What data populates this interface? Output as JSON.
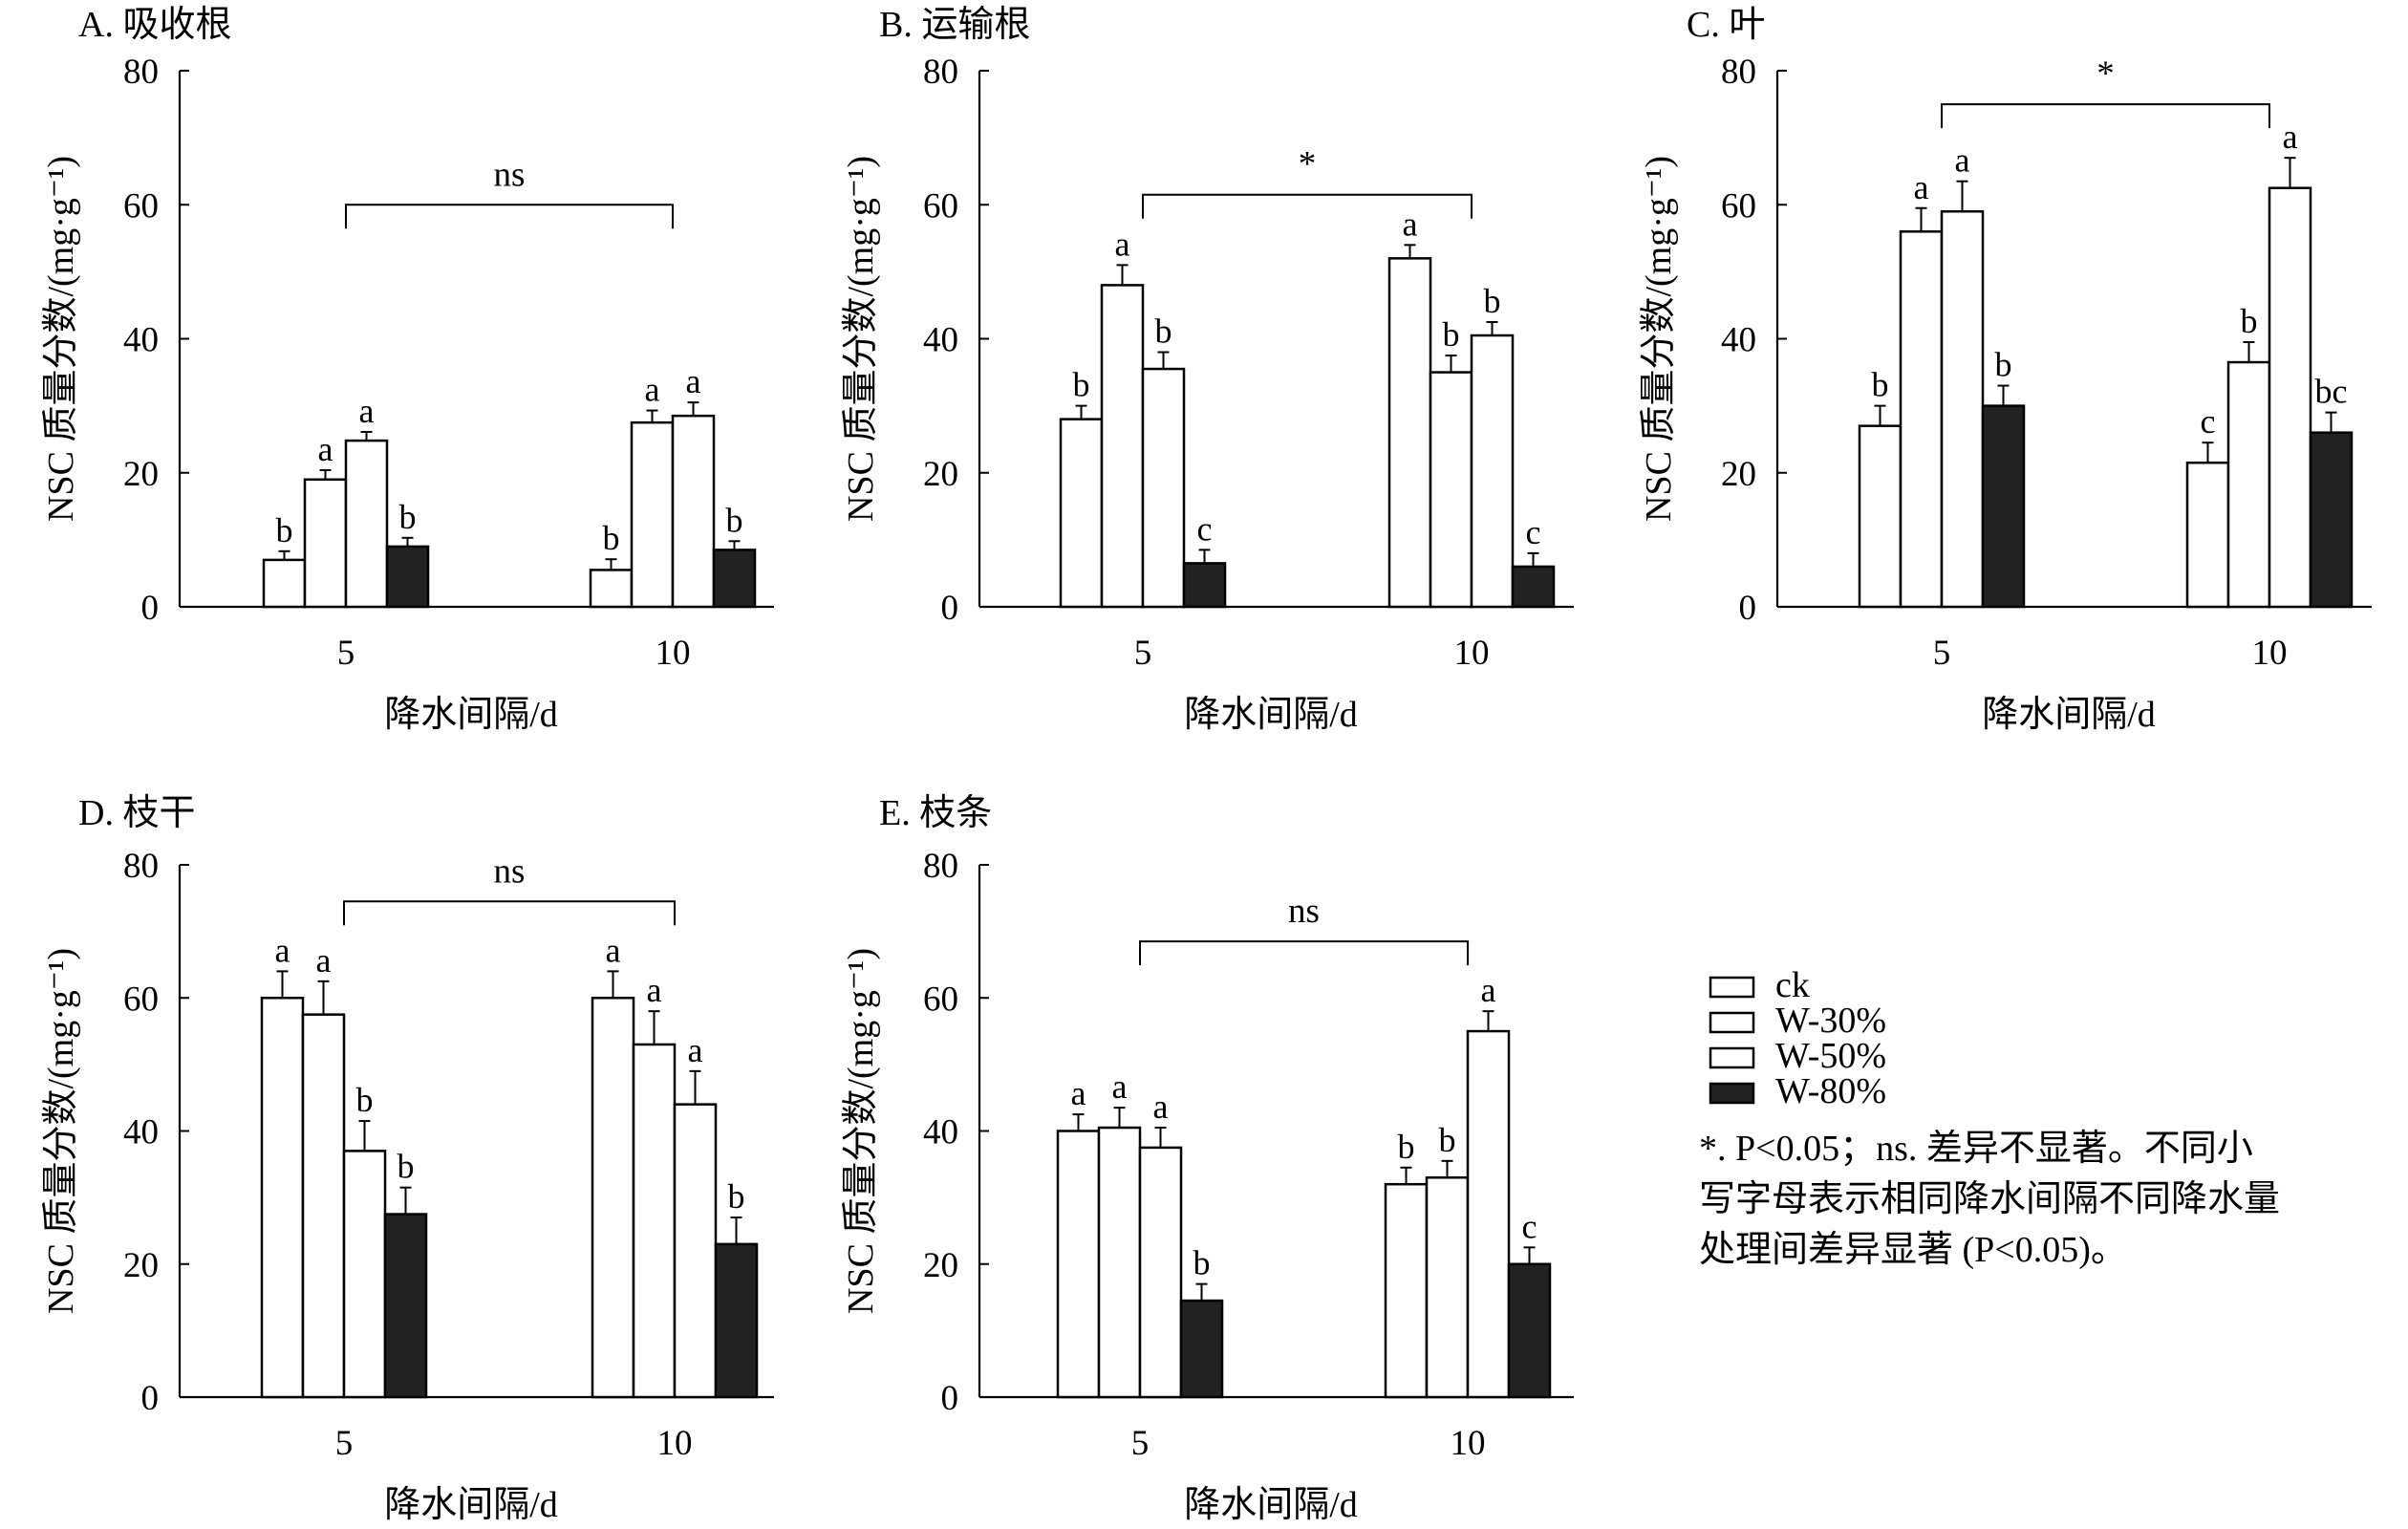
{
  "chart_data": [
    {
      "type": "bar",
      "title": "A. 吸收根",
      "xlabel": "降水间隔/d",
      "ylabel": "NSC 质量分数/(mg·g⁻¹)",
      "ylim": [
        0,
        80
      ],
      "yticks": [
        "0",
        "20",
        "40",
        "60",
        "80"
      ],
      "categories": [
        "5",
        "10"
      ],
      "series": [
        {
          "name": "ck",
          "values": [
            7,
            5.5
          ],
          "errors": [
            1.3,
            1.6
          ],
          "letters": [
            "b",
            "b"
          ]
        },
        {
          "name": "W-30%",
          "values": [
            19,
            27.5
          ],
          "errors": [
            1.4,
            1.8
          ],
          "letters": [
            "a",
            "a"
          ]
        },
        {
          "name": "W-50%",
          "values": [
            24.8,
            28.5
          ],
          "errors": [
            1.3,
            2.0
          ],
          "letters": [
            "a",
            "a"
          ]
        },
        {
          "name": "W-80%",
          "values": [
            9,
            8.5
          ],
          "errors": [
            1.3,
            1.3
          ],
          "letters": [
            "b",
            "b"
          ]
        }
      ],
      "significance": "ns",
      "sig_level": 60
    },
    {
      "type": "bar",
      "title": "B. 运输根",
      "xlabel": "降水间隔/d",
      "ylabel": "NSC 质量分数/(mg·g⁻¹)",
      "ylim": [
        0,
        80
      ],
      "yticks": [
        "0",
        "20",
        "40",
        "60",
        "80"
      ],
      "categories": [
        "5",
        "10"
      ],
      "series": [
        {
          "name": "ck",
          "values": [
            28,
            52
          ],
          "errors": [
            2.0,
            2.0
          ],
          "letters": [
            "b",
            "a"
          ]
        },
        {
          "name": "W-30%",
          "values": [
            48,
            35
          ],
          "errors": [
            3.0,
            2.5
          ],
          "letters": [
            "a",
            "b"
          ]
        },
        {
          "name": "W-50%",
          "values": [
            35.5,
            40.5
          ],
          "errors": [
            2.5,
            2.0
          ],
          "letters": [
            "b",
            "b"
          ]
        },
        {
          "name": "W-80%",
          "values": [
            6.5,
            6
          ],
          "errors": [
            2.0,
            2.0
          ],
          "letters": [
            "c",
            "c"
          ]
        }
      ],
      "significance": "*",
      "sig_level": 61.5
    },
    {
      "type": "bar",
      "title": "C. 叶",
      "xlabel": "降水间隔/d",
      "ylabel": "NSC 质量分数/(mg·g⁻¹)",
      "ylim": [
        0,
        80
      ],
      "yticks": [
        "0",
        "20",
        "40",
        "60",
        "80"
      ],
      "categories": [
        "5",
        "10"
      ],
      "series": [
        {
          "name": "ck",
          "values": [
            27,
            21.5
          ],
          "errors": [
            3.0,
            3.0
          ],
          "letters": [
            "b",
            "c"
          ]
        },
        {
          "name": "W-30%",
          "values": [
            56,
            36.5
          ],
          "errors": [
            3.5,
            3.0
          ],
          "letters": [
            "a",
            "b"
          ]
        },
        {
          "name": "W-50%",
          "values": [
            59,
            62.5
          ],
          "errors": [
            4.5,
            4.5
          ],
          "letters": [
            "a",
            "a"
          ]
        },
        {
          "name": "W-80%",
          "values": [
            30,
            26
          ],
          "errors": [
            3.0,
            3.0
          ],
          "letters": [
            "b",
            "bc"
          ]
        }
      ],
      "significance": "*",
      "sig_level": 75
    },
    {
      "type": "bar",
      "title": "D. 枝干",
      "xlabel": "降水间隔/d",
      "ylabel": "NSC 质量分数/(mg·g⁻¹)",
      "ylim": [
        0,
        80
      ],
      "yticks": [
        "0",
        "20",
        "40",
        "60",
        "80"
      ],
      "categories": [
        "5",
        "10"
      ],
      "series": [
        {
          "name": "ck",
          "values": [
            60,
            60
          ],
          "errors": [
            4.0,
            4.0
          ],
          "letters": [
            "a",
            "a"
          ]
        },
        {
          "name": "W-30%",
          "values": [
            57.5,
            53
          ],
          "errors": [
            5.0,
            5.0
          ],
          "letters": [
            "a",
            "a"
          ]
        },
        {
          "name": "W-50%",
          "values": [
            37,
            44
          ],
          "errors": [
            4.5,
            5.0
          ],
          "letters": [
            "b",
            "a"
          ]
        },
        {
          "name": "W-80%",
          "values": [
            27.5,
            23
          ],
          "errors": [
            4.0,
            4.0
          ],
          "letters": [
            "b",
            "b"
          ]
        }
      ],
      "significance": "ns",
      "sig_level": 74.5
    },
    {
      "type": "bar",
      "title": "E. 枝条",
      "xlabel": "降水间隔/d",
      "ylabel": "NSC 质量分数/(mg·g⁻¹)",
      "ylim": [
        0,
        80
      ],
      "yticks": [
        "0",
        "20",
        "40",
        "60",
        "80"
      ],
      "categories": [
        "5",
        "10"
      ],
      "series": [
        {
          "name": "ck",
          "values": [
            40,
            32
          ],
          "errors": [
            2.5,
            2.5
          ],
          "letters": [
            "a",
            "b"
          ]
        },
        {
          "name": "W-30%",
          "values": [
            40.5,
            33
          ],
          "errors": [
            3.0,
            2.5
          ],
          "letters": [
            "a",
            "b"
          ]
        },
        {
          "name": "W-50%",
          "values": [
            37.5,
            55
          ],
          "errors": [
            3.0,
            3.0
          ],
          "letters": [
            "a",
            "a"
          ]
        },
        {
          "name": "W-80%",
          "values": [
            14.5,
            20
          ],
          "errors": [
            2.5,
            2.5
          ],
          "letters": [
            "b",
            "c"
          ]
        }
      ],
      "significance": "ns",
      "sig_level": 68.5
    }
  ],
  "legend": {
    "items": [
      {
        "label": "ck",
        "fill": "#ffffff"
      },
      {
        "label": "W-30%",
        "fill": "#ffffff"
      },
      {
        "label": "W-50%",
        "fill": "#ffffff"
      },
      {
        "label": "W-80%",
        "fill": "#222222"
      }
    ]
  },
  "note": {
    "line1": "*. P<0.05；ns. 差异不显著。不同小",
    "line2": "写字母表示相同降水间隔不同降水量",
    "line3": "处理间差异显著 (P<0.05)。"
  },
  "colors": {
    "open_bar": "#ffffff",
    "solid_bar": "#222222",
    "stroke": "#000000"
  }
}
